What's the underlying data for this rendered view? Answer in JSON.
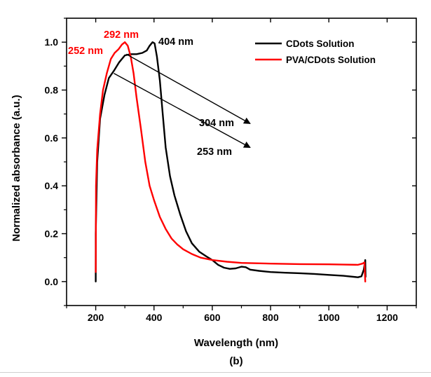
{
  "chart_data": {
    "type": "line",
    "xlabel": "Wavelength (nm)",
    "ylabel": "Normalized absorbance (a.u.)",
    "panel_label": "(b)",
    "xlim": [
      100,
      1300
    ],
    "ylim": [
      -0.1,
      1.1
    ],
    "x_ticks": [
      200,
      400,
      600,
      800,
      1000,
      1200
    ],
    "y_ticks": [
      0.0,
      0.2,
      0.4,
      0.6,
      0.8,
      1.0
    ],
    "x_tick_labels": [
      "200",
      "400",
      "600",
      "800",
      "1000",
      "1200"
    ],
    "y_tick_labels": [
      "0.0",
      "0.2",
      "0.4",
      "0.6",
      "0.8",
      "1.0"
    ],
    "legend_position": "top-right",
    "series": [
      {
        "name": "CDots Solution",
        "color": "#000000",
        "points": [
          [
            200,
            0.0
          ],
          [
            200,
            0.2
          ],
          [
            205,
            0.5
          ],
          [
            215,
            0.68
          ],
          [
            230,
            0.78
          ],
          [
            245,
            0.85
          ],
          [
            262,
            0.88
          ],
          [
            280,
            0.915
          ],
          [
            300,
            0.945
          ],
          [
            320,
            0.95
          ],
          [
            340,
            0.95
          ],
          [
            360,
            0.955
          ],
          [
            375,
            0.965
          ],
          [
            385,
            0.985
          ],
          [
            395,
            1.0
          ],
          [
            402,
            0.995
          ],
          [
            410,
            0.94
          ],
          [
            420,
            0.84
          ],
          [
            430,
            0.7
          ],
          [
            440,
            0.56
          ],
          [
            455,
            0.44
          ],
          [
            470,
            0.36
          ],
          [
            490,
            0.28
          ],
          [
            510,
            0.21
          ],
          [
            530,
            0.16
          ],
          [
            555,
            0.125
          ],
          [
            580,
            0.105
          ],
          [
            600,
            0.09
          ],
          [
            620,
            0.07
          ],
          [
            640,
            0.058
          ],
          [
            660,
            0.053
          ],
          [
            680,
            0.055
          ],
          [
            700,
            0.062
          ],
          [
            715,
            0.06
          ],
          [
            730,
            0.05
          ],
          [
            760,
            0.045
          ],
          [
            800,
            0.04
          ],
          [
            850,
            0.037
          ],
          [
            900,
            0.035
          ],
          [
            950,
            0.032
          ],
          [
            1000,
            0.028
          ],
          [
            1050,
            0.024
          ],
          [
            1100,
            0.018
          ],
          [
            1112,
            0.022
          ],
          [
            1120,
            0.05
          ],
          [
            1125,
            0.09
          ],
          [
            1126,
            0.02
          ]
        ]
      },
      {
        "name": "PVA/CDots Solution",
        "color": "#ff0000",
        "points": [
          [
            200,
            0.04
          ],
          [
            201,
            0.4
          ],
          [
            205,
            0.55
          ],
          [
            215,
            0.7
          ],
          [
            225,
            0.8
          ],
          [
            238,
            0.87
          ],
          [
            252,
            0.93
          ],
          [
            265,
            0.955
          ],
          [
            278,
            0.97
          ],
          [
            290,
            0.99
          ],
          [
            300,
            1.0
          ],
          [
            310,
            0.985
          ],
          [
            320,
            0.94
          ],
          [
            330,
            0.87
          ],
          [
            340,
            0.77
          ],
          [
            355,
            0.64
          ],
          [
            370,
            0.5
          ],
          [
            385,
            0.4
          ],
          [
            400,
            0.34
          ],
          [
            420,
            0.27
          ],
          [
            440,
            0.22
          ],
          [
            460,
            0.18
          ],
          [
            480,
            0.155
          ],
          [
            500,
            0.135
          ],
          [
            530,
            0.115
          ],
          [
            560,
            0.1
          ],
          [
            600,
            0.09
          ],
          [
            650,
            0.083
          ],
          [
            700,
            0.078
          ],
          [
            800,
            0.075
          ],
          [
            900,
            0.073
          ],
          [
            1000,
            0.072
          ],
          [
            1050,
            0.071
          ],
          [
            1100,
            0.07
          ],
          [
            1115,
            0.075
          ],
          [
            1122,
            0.08
          ],
          [
            1125,
            0.0
          ]
        ]
      }
    ],
    "annotations": [
      {
        "text": "292 nm",
        "color": "#ff0000"
      },
      {
        "text": "252 nm",
        "color": "#ff0000"
      },
      {
        "text": "404 nm",
        "color": "#000000"
      },
      {
        "text": "304 nm",
        "color": "#000000"
      },
      {
        "text": "253 nm",
        "color": "#000000"
      }
    ],
    "arrows": [
      {
        "from": [
          305,
          0.95
        ],
        "to": [
          730,
          0.66
        ]
      },
      {
        "from": [
          262,
          0.87
        ],
        "to": [
          730,
          0.56
        ]
      }
    ]
  }
}
